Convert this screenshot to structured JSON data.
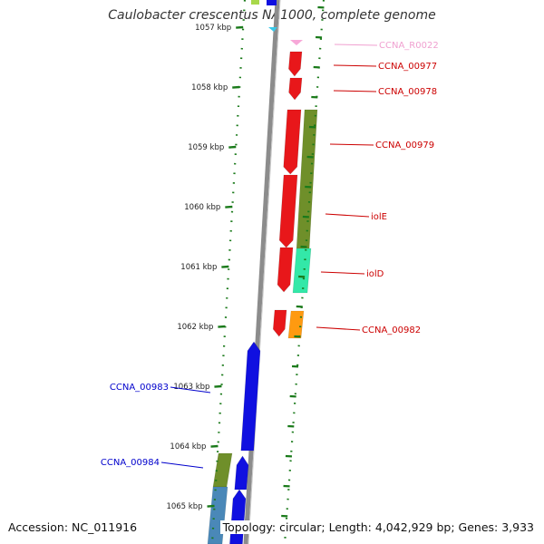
{
  "title": "Caulobacter crescentus NA1000, complete genome",
  "footer": {
    "accession": "Accession: NC_011916",
    "summary": "Topology: circular; Length: 4,042,929 bp; Genes: 3,933"
  },
  "ticks": [
    {
      "label": "1057 kbp",
      "kbp": 1057
    },
    {
      "label": "1058 kbp",
      "kbp": 1058
    },
    {
      "label": "1059 kbp",
      "kbp": 1059
    },
    {
      "label": "1060 kbp",
      "kbp": 1060
    },
    {
      "label": "1061 kbp",
      "kbp": 1061
    },
    {
      "label": "1062 kbp",
      "kbp": 1062
    },
    {
      "label": "1063 kbp",
      "kbp": 1063
    },
    {
      "label": "1064 kbp",
      "kbp": 1064
    },
    {
      "label": "1065 kbp",
      "kbp": 1065
    }
  ],
  "forward_genes": [
    {
      "label": "CCNA_R0022",
      "color": "#f7a8d8",
      "type": "RNA"
    },
    {
      "label": "CCNA_00977",
      "color": "#e8171a",
      "type": "CDS"
    },
    {
      "label": "CCNA_00978",
      "color": "#e8171a",
      "type": "CDS"
    },
    {
      "label": "CCNA_00979",
      "color": "#e8171a",
      "type": "CDS"
    },
    {
      "label": "iolE",
      "color": "#e8171a",
      "type": "CDS"
    },
    {
      "label": "iolD",
      "color": "#e8171a",
      "type": "CDS"
    },
    {
      "label": "CCNA_00982",
      "color": "#e8171a",
      "type": "CDS"
    }
  ],
  "reverse_genes": [
    {
      "label": "CCNA_00983",
      "color": "#1010e0",
      "type": "CDS"
    },
    {
      "label": "CCNA_00984",
      "color": "#1010e0",
      "type": "CDS"
    }
  ],
  "colors": {
    "forward_label": "#cc0000",
    "rna_label": "#f0a0d0",
    "reverse_label": "#0000cc",
    "backbone": "#8c8c8c",
    "tick": "#1a7a1a",
    "cog_olive": "#6f8f2a",
    "cog_teal": "#33e8a8",
    "cog_orange": "#ff9a10",
    "cog_steel": "#4a88b8"
  }
}
